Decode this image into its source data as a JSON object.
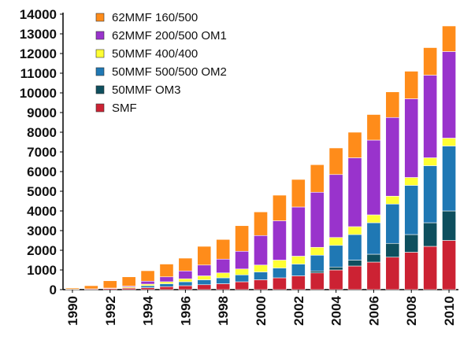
{
  "chart_data": {
    "type": "bar",
    "stacked": true,
    "title": "",
    "xlabel": "",
    "ylabel": "",
    "ylim": [
      0,
      14000
    ],
    "yticks": [
      0,
      1000,
      2000,
      3000,
      4000,
      5000,
      6000,
      7000,
      8000,
      9000,
      10000,
      11000,
      12000,
      13000,
      14000
    ],
    "xtick_labels": [
      "1990",
      "1992",
      "1994",
      "1996",
      "1998",
      "2000",
      "2002",
      "2004",
      "2006",
      "2008",
      "2010"
    ],
    "categories": [
      "1990",
      "1991",
      "1992",
      "1993",
      "1994",
      "1995",
      "1996",
      "1997",
      "1998",
      "1999",
      "2000",
      "2001",
      "2002",
      "2003",
      "2004",
      "2005",
      "2006",
      "2007",
      "2008",
      "2009",
      "2010"
    ],
    "grid": false,
    "legend_position": "top-left",
    "series": [
      {
        "name": "SMF",
        "color": "#cc2233",
        "values": [
          20,
          40,
          60,
          80,
          100,
          150,
          200,
          250,
          300,
          400,
          500,
          600,
          700,
          850,
          1000,
          1200,
          1400,
          1650,
          1900,
          2200,
          2500
        ]
      },
      {
        "name": "50MMF OM3",
        "color": "#0e4f5e",
        "values": [
          0,
          0,
          0,
          0,
          0,
          0,
          0,
          0,
          0,
          0,
          0,
          0,
          0,
          100,
          150,
          300,
          400,
          700,
          900,
          1200,
          1500
        ]
      },
      {
        "name": "50MMF 500/500 OM2",
        "color": "#1f78b4",
        "values": [
          0,
          0,
          0,
          0,
          100,
          150,
          200,
          250,
          300,
          350,
          400,
          500,
          600,
          800,
          1100,
          1300,
          1600,
          2000,
          2500,
          2900,
          3300
        ]
      },
      {
        "name": "50MMF 400/400",
        "color": "#ffff33",
        "values": [
          0,
          0,
          20,
          50,
          80,
          100,
          150,
          200,
          250,
          300,
          350,
          400,
          400,
          400,
          400,
          400,
          400,
          400,
          400,
          400,
          400
        ]
      },
      {
        "name": "62MMF 200/500 OM1",
        "color": "#9933cc",
        "values": [
          0,
          0,
          0,
          50,
          150,
          250,
          400,
          550,
          700,
          900,
          1500,
          2000,
          2500,
          2800,
          3200,
          3500,
          3800,
          4000,
          4000,
          4200,
          4400
        ]
      },
      {
        "name": "62MMF 160/500",
        "color": "#ff8c1a",
        "values": [
          60,
          160,
          370,
          470,
          530,
          650,
          650,
          950,
          1000,
          1300,
          1200,
          1300,
          1400,
          1400,
          1350,
          1300,
          1300,
          1300,
          1400,
          1400,
          1300
        ]
      }
    ]
  }
}
